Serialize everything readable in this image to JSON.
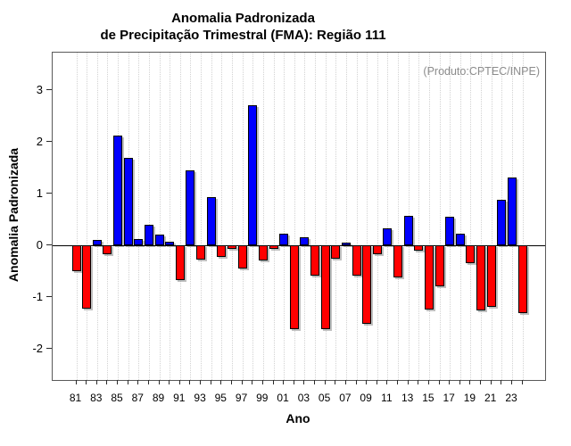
{
  "title": {
    "line1": "Anomalia Padronizada",
    "line2": "de Precipitação Trimestral (FMA): Região 111"
  },
  "labels": {
    "y": "Anomalia Padronizada",
    "x": "Ano"
  },
  "annotation": "(Produto:CPTEC/INPE)",
  "colors": {
    "positive": "#0000ff",
    "negative": "#ff0000",
    "bar_border": "#000000",
    "grid": "#d2d2d2",
    "annotation_gray": "#8c8c8c"
  },
  "chart_data": {
    "type": "bar",
    "title": "Anomalia Padronizada de Precipitação Trimestral (FMA): Região 111",
    "xlabel": "Ano",
    "ylabel": "Anomalia Padronizada",
    "years": [
      1981,
      1982,
      1983,
      1984,
      1985,
      1986,
      1987,
      1988,
      1989,
      1990,
      1991,
      1992,
      1993,
      1994,
      1995,
      1996,
      1997,
      1998,
      1999,
      2000,
      2001,
      2002,
      2003,
      2004,
      2005,
      2006,
      2007,
      2008,
      2009,
      2010,
      2011,
      2012,
      2013,
      2014,
      2015,
      2016,
      2017,
      2018,
      2019,
      2020,
      2021,
      2022,
      2023,
      2024
    ],
    "values": [
      -0.5,
      -1.22,
      0.11,
      -0.17,
      2.12,
      1.69,
      0.12,
      0.4,
      0.21,
      0.07,
      -0.67,
      1.46,
      -0.27,
      0.93,
      -0.22,
      -0.07,
      -0.44,
      2.71,
      -0.29,
      -0.07,
      0.23,
      -1.62,
      0.16,
      -0.59,
      -1.61,
      -0.26,
      0.05,
      -0.59,
      -1.52,
      -0.17,
      0.34,
      -0.62,
      0.57,
      -0.1,
      -1.24,
      -0.79,
      0.56,
      0.23,
      -0.34,
      -1.25,
      -1.18,
      0.88,
      1.31,
      -1.3
    ],
    "xtick_labels": [
      "81",
      "83",
      "85",
      "87",
      "89",
      "91",
      "93",
      "95",
      "97",
      "99",
      "01",
      "03",
      "05",
      "07",
      "09",
      "11",
      "13",
      "15",
      "17",
      "19",
      "21",
      "23"
    ],
    "yticks": [
      3,
      2,
      1,
      0,
      -1,
      -2
    ],
    "ylim": [
      -2.6,
      3.73
    ],
    "grid": "vertical dotted line at every year",
    "legend": "none",
    "positive_color": "#0000ff",
    "negative_color": "#ff0000"
  }
}
